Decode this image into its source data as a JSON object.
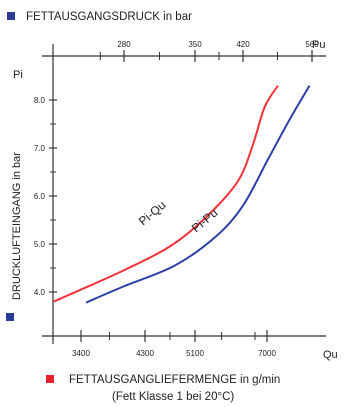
{
  "chart_data": {
    "type": "line",
    "top_axis": {
      "label": "FETTAUSGANGSDRUCK in bar",
      "symbol": "Pu",
      "ticks": [
        280,
        350,
        420,
        560
      ],
      "marker_color": "#2b3a9b"
    },
    "bottom_axis": {
      "label": "FETTAUSGANGLIEFERMENGE in g/min",
      "sublabel": "(Fett Klasse 1 bei 20°C)",
      "symbol": "Qu",
      "ticks": [
        3400,
        4300,
        5100,
        7000
      ],
      "marker_color": "#e8202a"
    },
    "left_axis": {
      "label": "DRUCKLUFTEINGANG in bar",
      "symbol": "Pi",
      "ticks": [
        4.0,
        5.0,
        6.0,
        7.0,
        8.0
      ],
      "ylim": [
        3.2,
        8.9
      ],
      "marker_color": "#2b3a9b"
    },
    "series": [
      {
        "name": "Pi-Qu",
        "color": "#f2333a",
        "axis": "bottom",
        "points": [
          [
            2870,
            3.8
          ],
          [
            3400,
            4.05
          ],
          [
            4000,
            4.45
          ],
          [
            4700,
            4.95
          ],
          [
            5300,
            5.55
          ],
          [
            5900,
            6.3
          ],
          [
            6400,
            7.05
          ],
          [
            6900,
            7.85
          ],
          [
            7150,
            8.3
          ]
        ]
      },
      {
        "name": "Pi-Pu",
        "color": "#2e3fa8",
        "axis": "top",
        "points": [
          [
            232,
            3.78
          ],
          [
            280,
            4.12
          ],
          [
            330,
            4.55
          ],
          [
            380,
            5.15
          ],
          [
            420,
            5.8
          ],
          [
            470,
            6.75
          ],
          [
            515,
            7.6
          ],
          [
            555,
            8.3
          ]
        ]
      }
    ]
  }
}
